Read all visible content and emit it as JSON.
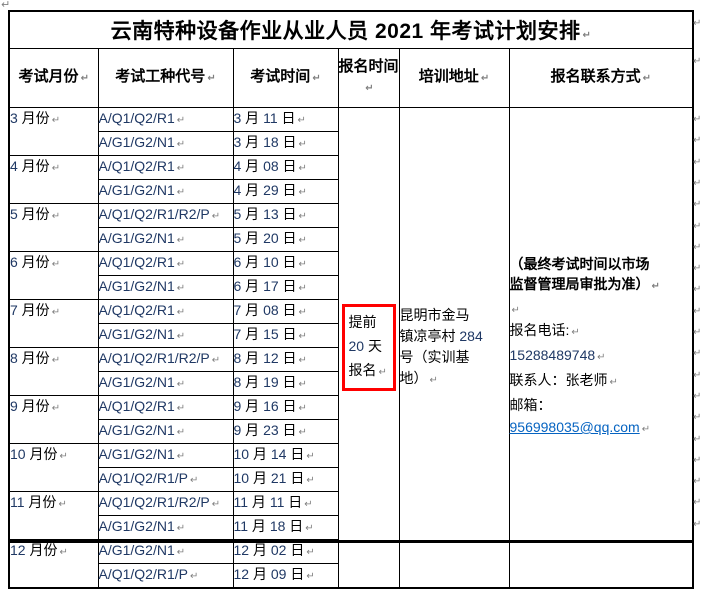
{
  "page": {
    "title": "云南特种设备作业从业人员 2021 年考试计划安排"
  },
  "table": {
    "headers": [
      "考试月份",
      "考试工种代号",
      "考试时间",
      "报名时间",
      "培训地址",
      "报名联系方式"
    ],
    "months": [
      {
        "month": "3 月份",
        "rows": [
          [
            "A/Q1/Q2/R1",
            "3 月 11 日"
          ],
          [
            "A/G1/G2/N1",
            "3 月 18 日"
          ]
        ]
      },
      {
        "month": "4 月份",
        "rows": [
          [
            "A/Q1/Q2/R1",
            "4 月 08 日"
          ],
          [
            "A/G1/G2/N1",
            "4 月 29 日"
          ]
        ]
      },
      {
        "month": "5 月份",
        "rows": [
          [
            "A/Q1/Q2/R1/R2/P",
            "5 月 13 日"
          ],
          [
            "A/G1/G2/N1",
            "5 月 20 日"
          ]
        ]
      },
      {
        "month": "6 月份",
        "rows": [
          [
            "A/Q1/Q2/R1",
            "6 月 10 日"
          ],
          [
            "A/G1/G2/N1",
            "6 月 17 日"
          ]
        ]
      },
      {
        "month": "7 月份",
        "rows": [
          [
            "A/Q1/Q2/R1",
            "7 月 08 日"
          ],
          [
            "A/G1/G2/N1",
            "7 月 15 日"
          ]
        ]
      },
      {
        "month": "8 月份",
        "rows": [
          [
            "A/Q1/Q2/R1/R2/P",
            "8 月 12 日"
          ],
          [
            "A/G1/G2/N1",
            "8 月 19 日"
          ]
        ]
      },
      {
        "month": "9 月份",
        "rows": [
          [
            "A/Q1/Q2/R1",
            "9 月 16 日"
          ],
          [
            "A/G1/G2/N1",
            "9 月 23 日"
          ]
        ]
      },
      {
        "month": "10 月份",
        "rows": [
          [
            "A/G1/G2/N1",
            "10 月 14 日"
          ],
          [
            "A/Q1/Q2/R1/P",
            "10 月 21 日"
          ]
        ]
      },
      {
        "month": "11 月份",
        "rows": [
          [
            "A/Q1/Q2/R1/R2/P",
            "11 月 11 日"
          ],
          [
            "A/G1/G2/N1",
            "11 月 18 日"
          ]
        ]
      },
      {
        "month": "12 月份",
        "rows": [
          [
            "A/G1/G2/N1",
            "12 月 02 日"
          ],
          [
            "A/Q1/Q2/R1/P",
            "12 月 09 日"
          ]
        ]
      }
    ],
    "signup_notice": {
      "lines": [
        "提前",
        "20 天",
        "报名"
      ]
    },
    "address": {
      "lines": [
        "昆明市金马",
        "镇凉亭村 284",
        "号（实训基",
        "地）"
      ]
    },
    "contact": {
      "notice_lines": [
        "（最终考试时间以市场",
        "监督管理局审批为准）"
      ],
      "lines": [
        {
          "text": "报名电话:",
          "mark": true
        },
        {
          "text": "15288489748",
          "mark": true
        },
        {
          "text": "联系人：张老师",
          "mark": true
        },
        {
          "text": "邮箱：",
          "mark": false
        },
        {
          "text": "956998035@qq.com",
          "link": true,
          "mark": true
        }
      ]
    }
  },
  "colors": {
    "latin_text": "#1F3864",
    "hyperlink": "#0563C1",
    "annotation_red": "#FF0000",
    "border": "#000000"
  }
}
